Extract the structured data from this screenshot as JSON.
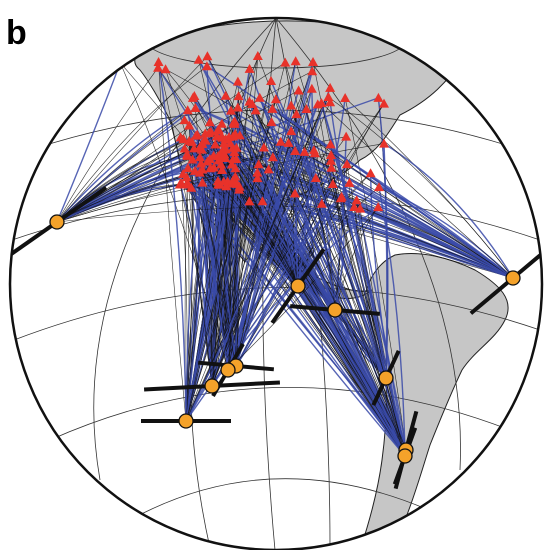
{
  "figure": {
    "panel_label": "b"
  }
}
